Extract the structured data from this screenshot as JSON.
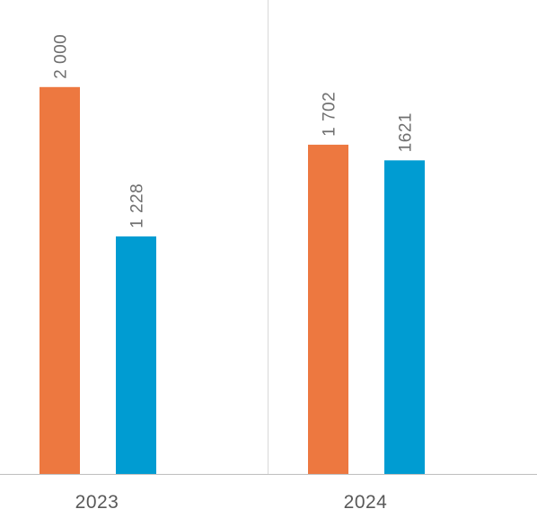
{
  "chart_data": {
    "type": "bar",
    "categories": [
      "2023",
      "2024"
    ],
    "series": [
      {
        "values": [
          2000,
          1702
        ],
        "labels": [
          "2 000",
          "1 702"
        ],
        "color": "#ED7840"
      },
      {
        "values": [
          1228,
          1621
        ],
        "labels": [
          "1 228",
          "1621"
        ],
        "color": "#009CD2"
      }
    ],
    "ylim": [
      0,
      2450
    ],
    "grid": false,
    "legend": "none",
    "title": "",
    "xlabel": "",
    "ylabel": ""
  },
  "colors": {
    "axis": "#BFBFBF",
    "divider": "#D9D9D9",
    "label_text": "#6F6F6F",
    "category_text": "#595959"
  }
}
